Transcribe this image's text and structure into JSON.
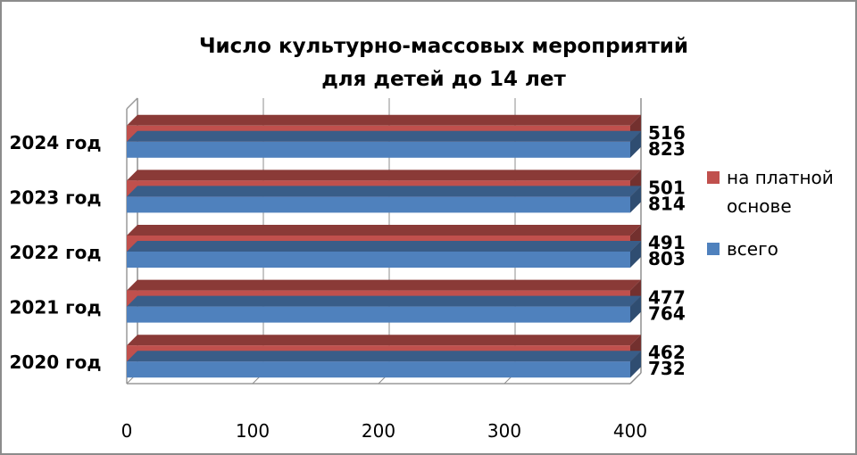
{
  "chart_data": {
    "type": "bar",
    "orientation": "horizontal",
    "title": [
      "Число культурно-массовых мероприятий",
      "для детей до 14 лет"
    ],
    "categories": [
      "2020 год",
      "2021 год",
      "2022 год",
      "2023 год",
      "2024 год"
    ],
    "series": [
      {
        "name": "на платной основе",
        "legend_lines": [
          "на платной",
          "основе"
        ],
        "color": "#c0504d",
        "values": [
          462,
          477,
          491,
          501,
          516
        ]
      },
      {
        "name": "всего",
        "legend_lines": [
          "всего"
        ],
        "color": "#4f81bd",
        "values": [
          732,
          764,
          803,
          814,
          823
        ]
      }
    ],
    "xlim": [
      0,
      400
    ],
    "xticks": [
      "0",
      "100",
      "200",
      "300",
      "400"
    ],
    "grid": true,
    "legend_position": "right",
    "three_d": true
  }
}
